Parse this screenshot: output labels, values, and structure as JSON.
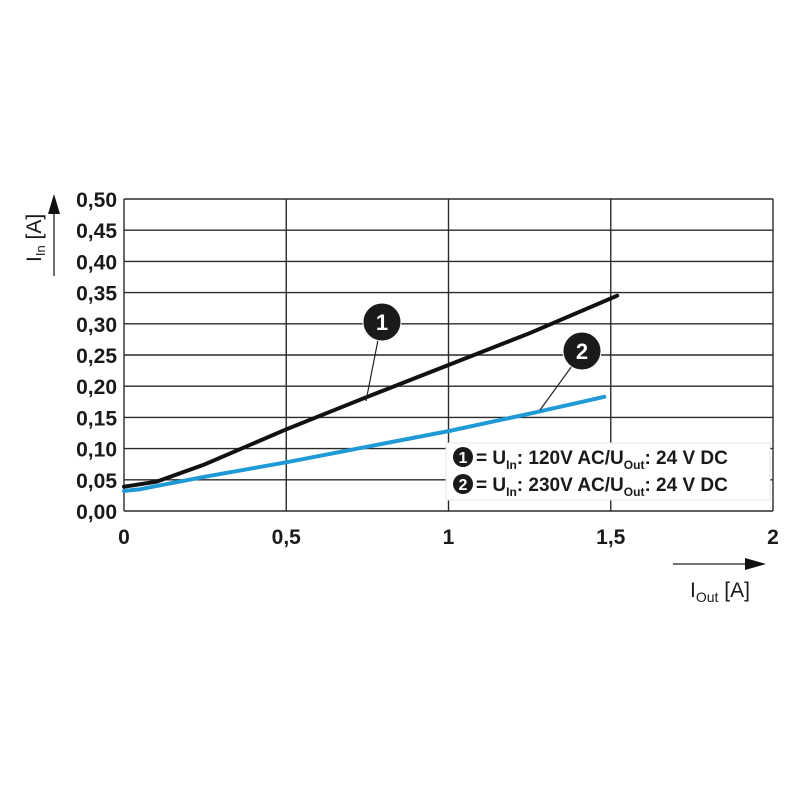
{
  "chart_data": {
    "type": "line",
    "title": "",
    "xlabel": "I_Out [A]",
    "ylabel": "I_In [A]",
    "xlim": [
      0,
      2
    ],
    "ylim": [
      0,
      0.5
    ],
    "grid": true,
    "x_ticks": [
      "0",
      "0,5",
      "1",
      "1,5",
      "2"
    ],
    "y_ticks": [
      "0,00",
      "0,05",
      "0,10",
      "0,15",
      "0,20",
      "0,25",
      "0,30",
      "0,35",
      "0,40",
      "0,45",
      "0,50"
    ],
    "series": [
      {
        "name": "1",
        "label": "U_In: 120V AC/U_Out: 24 V DC",
        "color": "#111111",
        "x": [
          0,
          0.1,
          0.25,
          0.5,
          0.75,
          1.0,
          1.25,
          1.52
        ],
        "y": [
          0.039,
          0.047,
          0.075,
          0.131,
          0.183,
          0.234,
          0.285,
          0.345
        ]
      },
      {
        "name": "2",
        "label": "U_In: 230V AC/U_Out: 24 V DC",
        "color": "#1f9ad6",
        "x": [
          0,
          0.05,
          0.25,
          0.5,
          0.75,
          1.0,
          1.25,
          1.48
        ],
        "y": [
          0.032,
          0.035,
          0.055,
          0.078,
          0.103,
          0.128,
          0.156,
          0.183
        ]
      }
    ],
    "legend_position": "lower right (inside plot)",
    "annotations": [
      {
        "marker": "1",
        "points_to_series": "1"
      },
      {
        "marker": "2",
        "points_to_series": "2"
      }
    ]
  },
  "axes": {
    "y_label_main": "I",
    "y_label_sub": "In",
    "y_label_unit": " [A]",
    "x_label_main": "I",
    "x_label_sub": "Out",
    "x_label_unit": " [A]"
  },
  "legend": {
    "items": [
      {
        "num": "1",
        "eq": "= U",
        "sub1": "In",
        "mid": ": 120V AC/U",
        "sub2": "Out",
        "tail": ": 24 V DC"
      },
      {
        "num": "2",
        "eq": "= U",
        "sub1": "In",
        "mid": ": 230V AC/U",
        "sub2": "Out",
        "tail": ": 24 V DC"
      }
    ]
  }
}
